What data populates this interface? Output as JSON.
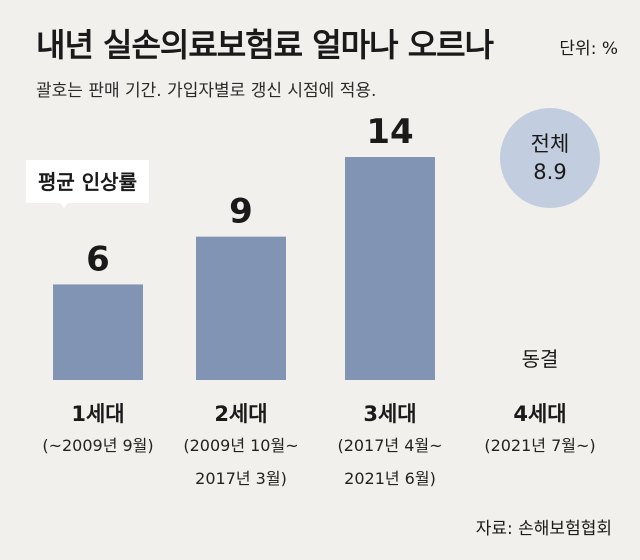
{
  "header": {
    "title": "내년 실손의료보험료 얼마나 오르나",
    "unit": "단위: %",
    "subtitle": "괄호는 판매 기간. 가입자별로 갱신 시점에 적용."
  },
  "callout": {
    "label": "평균 인상률"
  },
  "overall": {
    "label": "전체",
    "value": "8.9"
  },
  "source": "자료: 손해보험협회",
  "chart_data": {
    "type": "bar",
    "title": "내년 실손의료보험료 얼마나 오르나",
    "ylabel": "단위: %",
    "categories": [
      "1세대",
      "2세대",
      "3세대",
      "4세대"
    ],
    "category_periods": [
      [
        "(~2009년 9월)"
      ],
      [
        "(2009년 10월~",
        "2017년 3월)"
      ],
      [
        "(2017년 4월~",
        "2021년 6월)"
      ],
      [
        "(2021년 7월~)"
      ]
    ],
    "values": [
      6,
      9,
      14,
      null
    ],
    "value_labels": [
      "6",
      "9",
      "14",
      "동결"
    ],
    "overall_average": 8.9,
    "ylim": [
      0,
      14
    ],
    "grid": false,
    "colors": {
      "bar": "#8194b4",
      "overall_circle": "#c2cde0",
      "background": "#f1f0ec"
    }
  }
}
